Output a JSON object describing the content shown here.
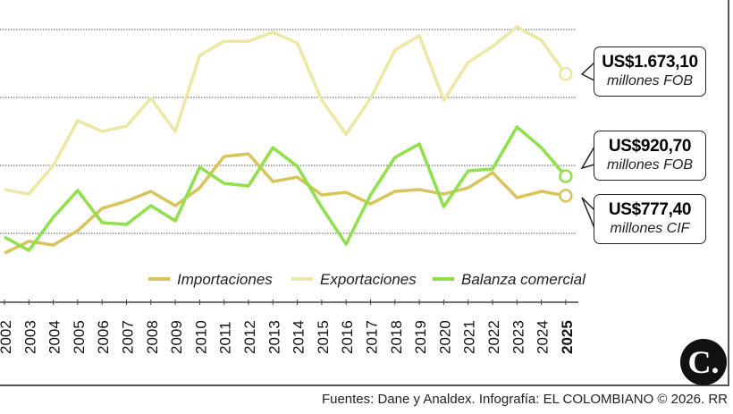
{
  "chart_data": {
    "type": "line",
    "x": [
      2002,
      2003,
      2004,
      2005,
      2006,
      2007,
      2008,
      2009,
      2010,
      2011,
      2012,
      2013,
      2014,
      2015,
      2016,
      2017,
      2018,
      2019,
      2020,
      2021,
      2022,
      2023,
      2024,
      2025
    ],
    "x_tick_labels": [
      "2002",
      "2003",
      "2004",
      "2005",
      "2006",
      "2007",
      "2008",
      "2009",
      "2010",
      "2011",
      "2012",
      "2013",
      "2014",
      "2015",
      "2016",
      "2017",
      "2018",
      "2019",
      "2020",
      "2021",
      "2022",
      "2023",
      "2024",
      "2025"
    ],
    "ylim": [
      300,
      2050
    ],
    "gridlines": [
      500,
      1000,
      1500,
      2000
    ],
    "grid": "horizontal dotted",
    "legend_placement": "bottom-right",
    "series": [
      {
        "name": "Importaciones",
        "color": "#d8c45a",
        "values": [
          355,
          441,
          414,
          520,
          684,
          737,
          809,
          704,
          835,
          1066,
          1085,
          881,
          914,
          783,
          802,
          717,
          809,
          822,
          789,
          835,
          947,
          763,
          809,
          777.4
        ]
      },
      {
        "name": "Exportaciones",
        "color": "#ece8a4",
        "values": [
          822,
          789,
          1000,
          1329,
          1250,
          1289,
          1493,
          1250,
          1809,
          1914,
          1914,
          1980,
          1901,
          1480,
          1230,
          1493,
          1849,
          1954,
          1480,
          1757,
          1875,
          2020,
          1921,
          1673.1
        ]
      },
      {
        "name": "Balanza comercial",
        "color": "#8fe04c",
        "values": [
          473,
          375,
          618,
          816,
          579,
          566,
          704,
          592,
          987,
          868,
          849,
          1131,
          993,
          691,
          421,
          783,
          1059,
          1158,
          697,
          960,
          974,
          1283,
          1131,
          920.7
        ]
      }
    ]
  },
  "callouts": [
    {
      "value": "US$1.673,10",
      "unit": "millones FOB"
    },
    {
      "value": "US$920,70",
      "unit": "millones FOB"
    },
    {
      "value": "US$777,40",
      "unit": "millones CIF"
    }
  ],
  "logo": "C.",
  "footer": "Fuentes: Dane y Analdex. Infografía: EL COLOMBIANO © 2026. RR"
}
